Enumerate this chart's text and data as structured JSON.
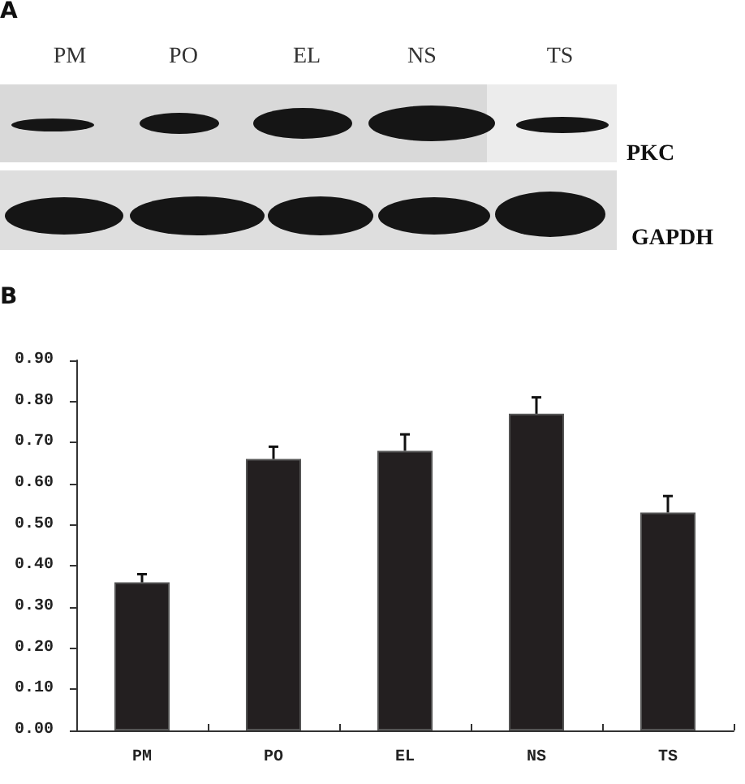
{
  "chart_data": {
    "type": "bar",
    "annotations": [
      "A",
      "B",
      "PKC",
      "GAPDH"
    ],
    "categories": [
      "PM",
      "PO",
      "EL",
      "NS",
      "TS"
    ],
    "values": [
      0.36,
      0.66,
      0.68,
      0.77,
      0.53
    ],
    "errors": [
      [
        0.36,
        0.38
      ],
      [
        0.66,
        0.69
      ],
      [
        0.68,
        0.72
      ],
      [
        0.77,
        0.81
      ],
      [
        0.53,
        0.57
      ]
    ],
    "color": "#231f20",
    "ylim": [
      0,
      0.9
    ],
    "yticks": [
      {
        "value": 0,
        "label": "0.00"
      },
      {
        "value": 0.1,
        "label": "0.10"
      },
      {
        "value": 0.2,
        "label": "0.20"
      },
      {
        "value": 0.3,
        "label": "0.30"
      },
      {
        "value": 0.4,
        "label": "0.40"
      },
      {
        "value": 0.5,
        "label": "0.50"
      },
      {
        "value": 0.6,
        "label": "0.60"
      },
      {
        "value": 0.7,
        "label": "0.70"
      },
      {
        "value": 0.8,
        "label": "0.80"
      },
      {
        "value": 0.9,
        "label": "0.90"
      }
    ]
  }
}
